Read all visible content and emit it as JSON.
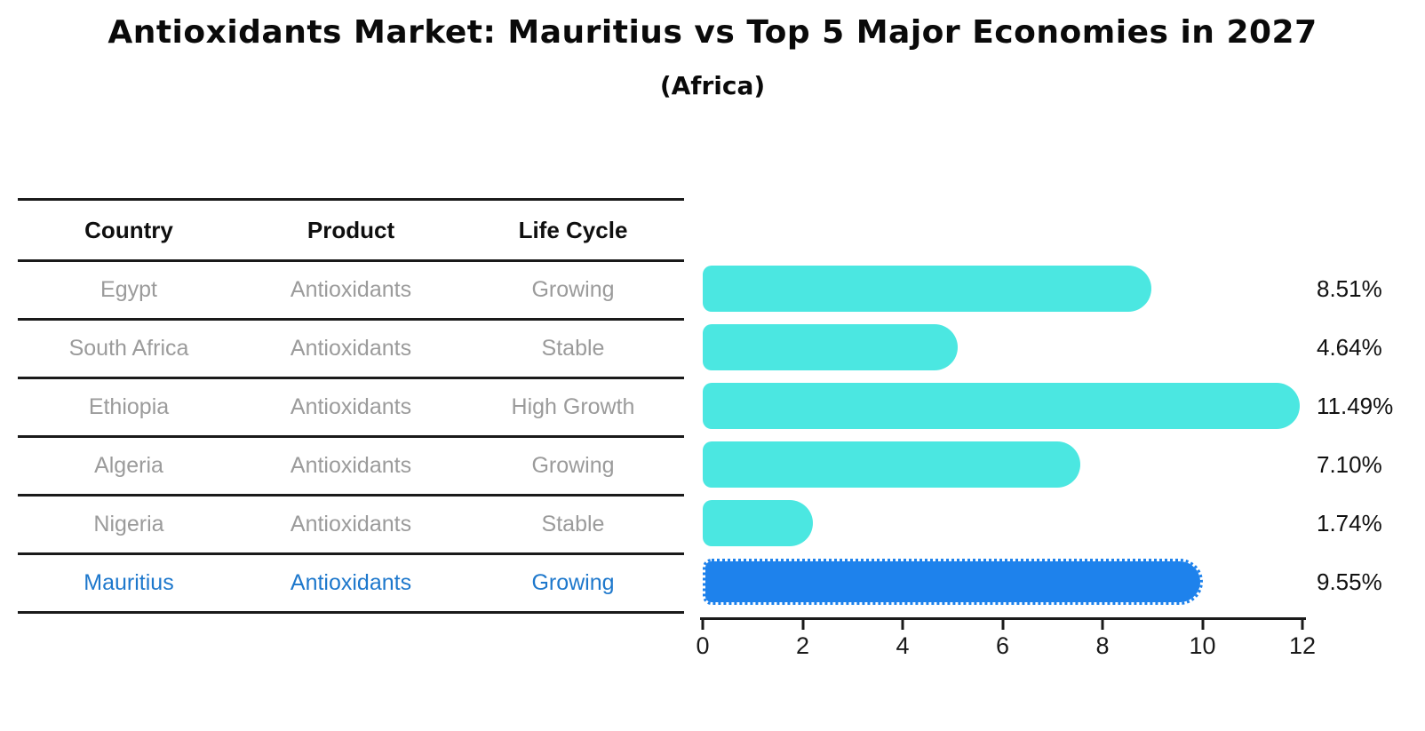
{
  "title": "Antioxidants Market: Mauritius vs Top 5 Major Economies in 2027",
  "subtitle": "(Africa)",
  "table": {
    "headers": [
      "Country",
      "Product",
      "Life Cycle"
    ],
    "rows": [
      {
        "country": "Egypt",
        "product": "Antioxidants",
        "life_cycle": "Growing",
        "value_label": "8.51%",
        "highlight": false
      },
      {
        "country": "South Africa",
        "product": "Antioxidants",
        "life_cycle": "Stable",
        "value_label": "4.64%",
        "highlight": false
      },
      {
        "country": "Ethiopia",
        "product": "Antioxidants",
        "life_cycle": "High Growth",
        "value_label": "11.49%",
        "highlight": false
      },
      {
        "country": "Algeria",
        "product": "Antioxidants",
        "life_cycle": "Growing",
        "value_label": "7.10%",
        "highlight": false
      },
      {
        "country": "Nigeria",
        "product": "Antioxidants",
        "life_cycle": "Stable",
        "value_label": "1.74%",
        "highlight": false
      },
      {
        "country": "Mauritius",
        "product": "Antioxidants",
        "life_cycle": "Growing",
        "value_label": "9.55%",
        "highlight": true
      }
    ]
  },
  "chart_data": {
    "type": "bar",
    "orientation": "horizontal",
    "title": "Antioxidants Market: Mauritius vs Top 5 Major Economies in 2027",
    "subtitle": "(Africa)",
    "categories": [
      "Egypt",
      "South Africa",
      "Ethiopia",
      "Algeria",
      "Nigeria",
      "Mauritius"
    ],
    "values": [
      8.51,
      4.64,
      11.49,
      7.1,
      1.74,
      9.55
    ],
    "value_labels": [
      "8.51%",
      "4.64%",
      "11.49%",
      "7.10%",
      "1.74%",
      "9.55%"
    ],
    "xlabel": "",
    "ylabel": "",
    "xlim": [
      0,
      12
    ],
    "xticks": [
      0,
      2,
      4,
      6,
      8,
      10,
      12
    ],
    "grid": false,
    "legend": false,
    "highlight_index": 5,
    "bar_color": "#4BE7E1",
    "highlight_color": "#1E82EC"
  },
  "colors": {
    "bar": "#4BE7E1",
    "highlight_bar": "#1E82EC",
    "highlight_text": "#1E78CC",
    "row_text": "#9B9B9B",
    "header_text": "#0F0F0F",
    "value_text": "#111111",
    "line": "#1A1A1A"
  }
}
